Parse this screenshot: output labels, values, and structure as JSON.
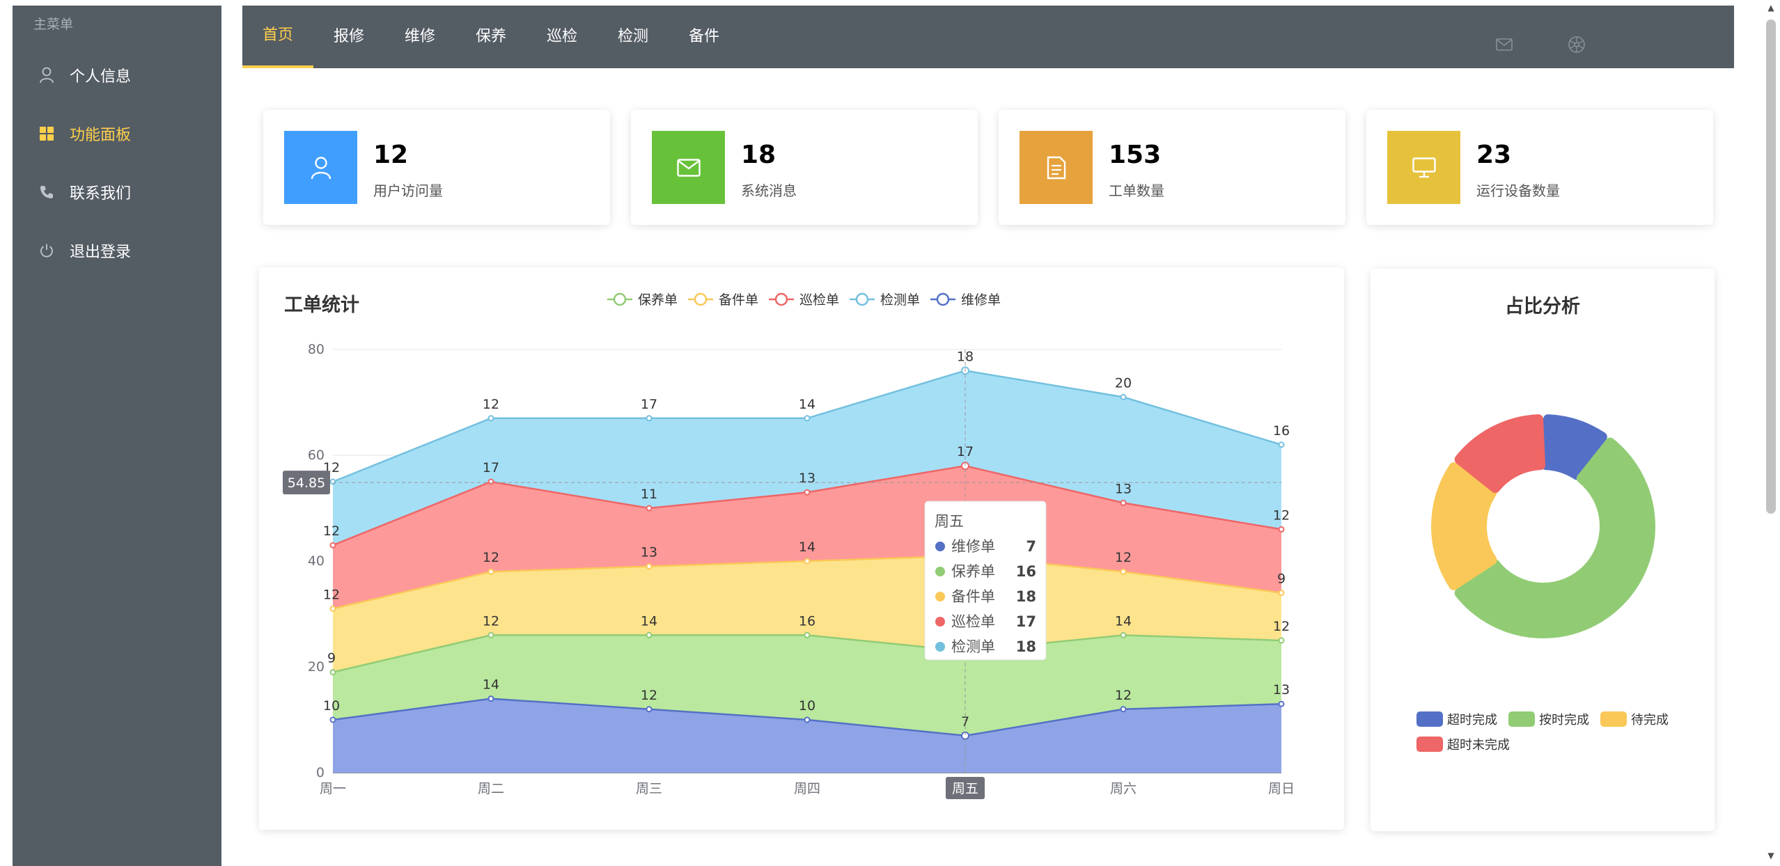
{
  "sidebar": {
    "title": "主菜单",
    "items": [
      {
        "label": "个人信息",
        "icon": "user-icon",
        "active": false
      },
      {
        "label": "功能面板",
        "icon": "grid-icon",
        "active": true
      },
      {
        "label": "联系我们",
        "icon": "phone-icon",
        "active": false
      },
      {
        "label": "退出登录",
        "icon": "power-icon",
        "active": false
      }
    ]
  },
  "nav": {
    "tabs": [
      "首页",
      "报修",
      "维修",
      "保养",
      "巡检",
      "检测",
      "备件"
    ],
    "active_tab": "首页",
    "icons": [
      "mail-icon",
      "settings-wheel-icon"
    ]
  },
  "stats": [
    {
      "value": "12",
      "label": "用户访问量",
      "icon": "user-icon",
      "color": "#409eff"
    },
    {
      "value": "18",
      "label": "系统消息",
      "icon": "envelope-icon",
      "color": "#67c23a"
    },
    {
      "value": "153",
      "label": "工单数量",
      "icon": "document-icon",
      "color": "#e6a23c"
    },
    {
      "value": "23",
      "label": "运行设备数量",
      "icon": "monitor-icon",
      "color": "#e6c23c"
    }
  ],
  "chart_panel": {
    "title": "工单统计"
  },
  "chart_data": [
    {
      "type": "area",
      "stacked": true,
      "title": "工单统计",
      "categories": [
        "周一",
        "周二",
        "周三",
        "周四",
        "周五",
        "周六",
        "周日"
      ],
      "ylim": [
        0,
        80
      ],
      "yticks": [
        0,
        20,
        40,
        60,
        80
      ],
      "grid": true,
      "legend_position": "top",
      "legend_order": [
        "保养单",
        "备件单",
        "巡检单",
        "检测单",
        "维修单"
      ],
      "series": [
        {
          "name": "维修单",
          "values": [
            10,
            14,
            12,
            10,
            7,
            12,
            13
          ],
          "color": "#5470c6",
          "fill": "#8fa4e6"
        },
        {
          "name": "保养单",
          "values": [
            9,
            12,
            14,
            16,
            16,
            14,
            12
          ],
          "color": "#91cc75",
          "fill": "#b9e89e"
        },
        {
          "name": "备件单",
          "values": [
            12,
            12,
            13,
            14,
            18,
            12,
            9
          ],
          "color": "#fac858",
          "fill": "#fde38c"
        },
        {
          "name": "巡检单",
          "values": [
            12,
            17,
            11,
            13,
            17,
            13,
            12
          ],
          "color": "#ee6666",
          "fill": "#fd9999"
        },
        {
          "name": "检测单",
          "values": [
            12,
            12,
            17,
            14,
            18,
            20,
            16
          ],
          "color": "#73c0de",
          "fill": "#a5dff6"
        }
      ],
      "crosshair": {
        "category": "周五",
        "y_value": "54.85"
      },
      "tooltip": {
        "title": "周五",
        "rows": [
          {
            "name": "维修单",
            "value": "7",
            "color": "#5470c6"
          },
          {
            "name": "保养单",
            "value": "16",
            "color": "#91cc75"
          },
          {
            "name": "备件单",
            "value": "18",
            "color": "#fac858"
          },
          {
            "name": "巡检单",
            "value": "17",
            "color": "#ee6666"
          },
          {
            "name": "检测单",
            "value": "18",
            "color": "#73c0de"
          }
        ]
      }
    },
    {
      "type": "pie",
      "donut": true,
      "title": "占比分析",
      "legend_position": "bottom",
      "slices": [
        {
          "name": "超时完成",
          "value": 10,
          "color": "#5470c6"
        },
        {
          "name": "按时完成",
          "value": 55,
          "color": "#91cc75"
        },
        {
          "name": "待完成",
          "value": 20,
          "color": "#fac858"
        },
        {
          "name": "超时未完成",
          "value": 15,
          "color": "#ee6666"
        }
      ]
    }
  ]
}
